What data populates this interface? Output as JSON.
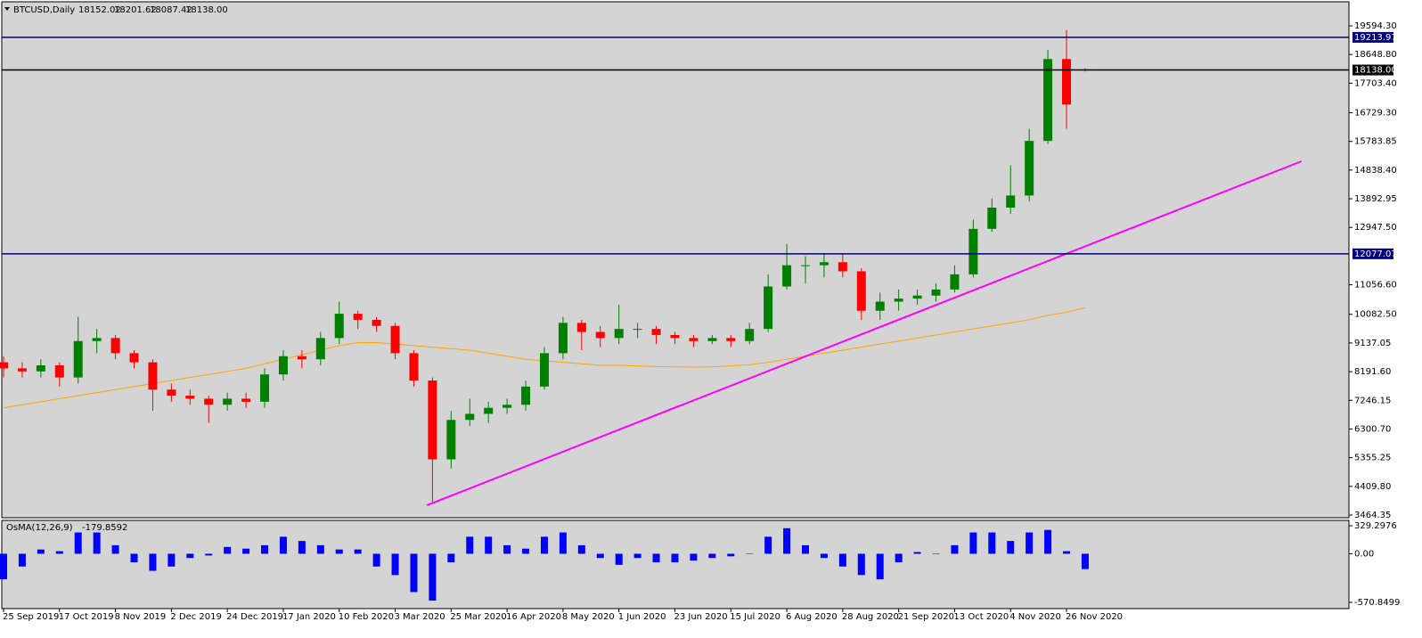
{
  "header": {
    "symbol": "BTCUSD,Daily",
    "ohlc": [
      "18152.02",
      "18201.62",
      "18087.42",
      "18138.00"
    ]
  },
  "chart_data": [
    {
      "type": "candlestick",
      "categories": [
        null,
        null,
        null,
        null,
        null,
        null,
        null,
        null,
        null,
        null,
        null,
        null,
        null,
        null,
        null,
        null,
        null,
        null,
        null,
        null,
        null,
        null,
        null,
        null,
        null,
        null,
        null,
        null,
        null,
        null,
        null,
        null,
        null,
        null,
        null,
        null,
        null,
        null,
        null,
        null,
        null,
        null,
        null,
        null,
        null,
        null,
        null,
        null,
        null,
        null,
        null,
        null,
        null,
        null,
        null,
        null,
        null,
        null,
        null
      ],
      "x_labels": [
        {
          "index": 0,
          "label": "25 Sep 2019"
        },
        {
          "index": 3,
          "label": "17 Oct 2019"
        },
        {
          "index": 6,
          "label": "8 Nov 2019"
        },
        {
          "index": 9,
          "label": "2 Dec 2019"
        },
        {
          "index": 12,
          "label": "24 Dec 2019"
        },
        {
          "index": 15,
          "label": "17 Jan 2020"
        },
        {
          "index": 18,
          "label": "10 Feb 2020"
        },
        {
          "index": 21,
          "label": "3 Mar 2020"
        },
        {
          "index": 24,
          "label": "25 Mar 2020"
        },
        {
          "index": 27,
          "label": "16 Apr 2020"
        },
        {
          "index": 30,
          "label": "8 May 2020"
        },
        {
          "index": 33,
          "label": "1 Jun 2020"
        },
        {
          "index": 36,
          "label": "23 Jun 2020"
        },
        {
          "index": 39,
          "label": "15 Jul 2020"
        },
        {
          "index": 42,
          "label": "6 Aug 2020"
        },
        {
          "index": 45,
          "label": "28 Aug 2020"
        },
        {
          "index": 48,
          "label": "21 Sep 2020"
        },
        {
          "index": 51,
          "label": "13 Oct 2020"
        },
        {
          "index": 54,
          "label": "4 Nov 2020"
        },
        {
          "index": 57,
          "label": "26 Nov 2020"
        }
      ],
      "open": [
        8500,
        8300,
        8200,
        8400,
        8000,
        9200,
        9300,
        8800,
        8500,
        7600,
        7400,
        7300,
        7100,
        7300,
        7200,
        8100,
        8700,
        8600,
        9300,
        10100,
        9900,
        9700,
        8800,
        7900,
        5300,
        6600,
        6800,
        7000,
        7100,
        7700,
        8800,
        9800,
        9500,
        9300,
        9600,
        9600,
        9400,
        9300,
        9200,
        9300,
        9200,
        9600,
        11000,
        11700,
        11700,
        11800,
        11500,
        10200,
        10500,
        10600,
        10700,
        10900,
        11400,
        12900,
        13600,
        14000,
        15800,
        18500,
        18152.02
      ],
      "high": [
        8700,
        8500,
        8600,
        8500,
        10000,
        9600,
        9400,
        8900,
        8600,
        7800,
        7600,
        7400,
        7500,
        7500,
        8300,
        8900,
        8900,
        9500,
        10500,
        10200,
        10000,
        9800,
        8900,
        8000,
        6900,
        7300,
        7200,
        7300,
        7900,
        9000,
        10000,
        9900,
        9700,
        10400,
        9800,
        9700,
        9500,
        9400,
        9400,
        9400,
        9800,
        11400,
        12400,
        12000,
        12100,
        12100,
        11600,
        10800,
        10900,
        10900,
        11100,
        11700,
        13200,
        13900,
        15000,
        16200,
        18800,
        19450,
        18201.62
      ],
      "low": [
        8000,
        8000,
        8000,
        7700,
        7800,
        8800,
        8600,
        8300,
        6900,
        7200,
        7100,
        6500,
        6900,
        7000,
        7000,
        7900,
        8300,
        8400,
        9100,
        9600,
        9500,
        8600,
        7700,
        3900,
        5000,
        6400,
        6500,
        6800,
        6900,
        7600,
        8600,
        8900,
        9000,
        9100,
        9300,
        9100,
        9100,
        9000,
        9100,
        9000,
        9100,
        9500,
        10900,
        11100,
        11300,
        11300,
        9900,
        9900,
        10200,
        10400,
        10500,
        10800,
        11300,
        12800,
        13400,
        13800,
        15700,
        16200,
        18087.42
      ],
      "close": [
        8300,
        8200,
        8400,
        8000,
        9200,
        9300,
        8800,
        8500,
        7600,
        7400,
        7300,
        7100,
        7300,
        7200,
        8100,
        8700,
        8600,
        9300,
        10100,
        9900,
        9700,
        8800,
        7900,
        5300,
        6600,
        6800,
        7000,
        7100,
        7700,
        8800,
        9800,
        9500,
        9300,
        9600,
        9600,
        9400,
        9300,
        9200,
        9300,
        9200,
        9600,
        11000,
        11700,
        11700,
        11800,
        11500,
        10200,
        10500,
        10600,
        10700,
        10900,
        11400,
        12900,
        13600,
        14000,
        15800,
        18500,
        17000,
        18138
      ],
      "up_color": "#008000",
      "down_color": "#ff0000",
      "series": [
        {
          "color": "#ffa500",
          "values": [
            7000,
            7100,
            7200,
            7300,
            7400,
            7500,
            7600,
            7700,
            7800,
            7900,
            8000,
            8100,
            8200,
            8300,
            8450,
            8600,
            8750,
            8900,
            9050,
            9150,
            9150,
            9100,
            9050,
            9000,
            8950,
            8900,
            8800,
            8700,
            8600,
            8550,
            8500,
            8450,
            8400,
            8400,
            8380,
            8360,
            8350,
            8340,
            8350,
            8380,
            8420,
            8500,
            8600,
            8700,
            8800,
            8900,
            9000,
            9100,
            9200,
            9300,
            9400,
            9500,
            9600,
            9700,
            9800,
            9900,
            10050,
            10150,
            10300
          ]
        }
      ],
      "trendline": {
        "color": "#ff00ff",
        "x": [
          22.7,
          69.6
        ],
        "values": [
          3787,
          15128
        ]
      },
      "hlines": [
        {
          "value": 19213.97,
          "color": "#000080"
        },
        {
          "value": 18138,
          "label": "18138.00",
          "color": "#000000"
        },
        {
          "value": 12077.07,
          "color": "#000080"
        }
      ],
      "ylim": [
        3376,
        20387
      ],
      "yticks": [
        {
          "value": 19594.3,
          "label": "19594.30"
        },
        {
          "value": 18648.8,
          "label": "18648.80"
        },
        {
          "value": 17703.4,
          "label": "17703.40"
        },
        {
          "value": 16729.3,
          "label": "16729.30"
        },
        {
          "value": 15783.85,
          "label": "15783.85"
        },
        {
          "value": 14838.4,
          "label": "14838.40"
        },
        {
          "value": 13892.95,
          "label": "13892.95"
        },
        {
          "value": 12947.5,
          "label": "12947.50"
        },
        {
          "value": 11056.6,
          "label": "11056.60"
        },
        {
          "value": 10082.5,
          "label": "10082.50"
        },
        {
          "value": 9137.05,
          "label": "9137.05"
        },
        {
          "value": 8191.6,
          "label": "8191.60"
        },
        {
          "value": 7246.15,
          "label": "7246.15"
        },
        {
          "value": 6300.7,
          "label": "6300.70"
        },
        {
          "value": 5355.25,
          "label": "5355.25"
        },
        {
          "value": 4409.8,
          "label": "4409.80"
        },
        {
          "value": 3464.35,
          "label": "3464.35"
        }
      ]
    },
    {
      "type": "histogram",
      "title": "OsMA(12,26,9)",
      "color": "#0000ff",
      "values": [
        -300,
        -150,
        50,
        30,
        250,
        250,
        100,
        -100,
        -200,
        -150,
        -50,
        -20,
        80,
        60,
        100,
        200,
        150,
        100,
        50,
        50,
        -150,
        -250,
        -450,
        -550,
        -100,
        200,
        200,
        100,
        60,
        200,
        250,
        100,
        -50,
        -130,
        -50,
        -100,
        -100,
        -80,
        -50,
        -30,
        0,
        200,
        300,
        100,
        -50,
        -150,
        -250,
        -300,
        -100,
        20,
        0,
        100,
        250,
        250,
        150,
        250,
        280,
        30,
        -179.8592
      ],
      "ylim": [
        -644,
        392
      ],
      "yticks": [
        329.2976,
        {
          "value": 0,
          "label": "0.00"
        },
        -570.8499
      ]
    }
  ]
}
